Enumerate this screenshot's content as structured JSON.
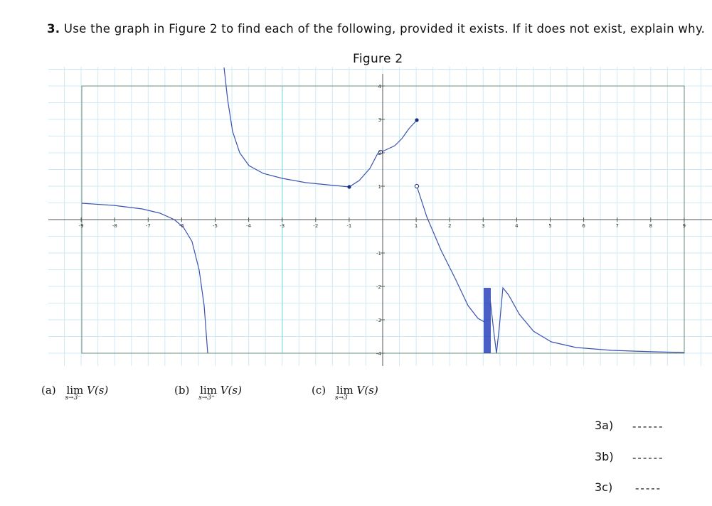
{
  "question": {
    "number": "3.",
    "text": "Use the graph in Figure 2 to find each of the following, provided it exists. If it does not exist, explain why."
  },
  "figure": {
    "title": "Figure 2",
    "x_tick_labels": [
      "-9",
      "-8",
      "-7",
      "-6",
      "-5",
      "-4",
      "-3",
      "-2",
      "-1",
      "1",
      "2",
      "3",
      "4",
      "5",
      "6",
      "7",
      "8",
      "9"
    ],
    "y_tick_labels": [
      "4",
      "3",
      "2",
      "1",
      "-1",
      "-2",
      "-3",
      "-4"
    ],
    "colors": {
      "curve": "#3b52b0",
      "grid": "#cdebf5",
      "axis": "#555555",
      "frame": "#6a8f7a",
      "asymptote": "#7fd7e6"
    }
  },
  "parts": [
    {
      "label": "(a)",
      "lim": "lim",
      "sub": "s→3⁻",
      "expr": "V(s)"
    },
    {
      "label": "(b)",
      "lim": "lim",
      "sub": "s→3⁺",
      "expr": "V(s)"
    },
    {
      "label": "(c)",
      "lim": "lim",
      "sub": "s→3",
      "expr": "V(s)"
    }
  ],
  "answers": [
    {
      "label": "3a)",
      "blank": "------"
    },
    {
      "label": "3b)",
      "blank": "------"
    },
    {
      "label": "3c)",
      "blank": "-----"
    }
  ]
}
